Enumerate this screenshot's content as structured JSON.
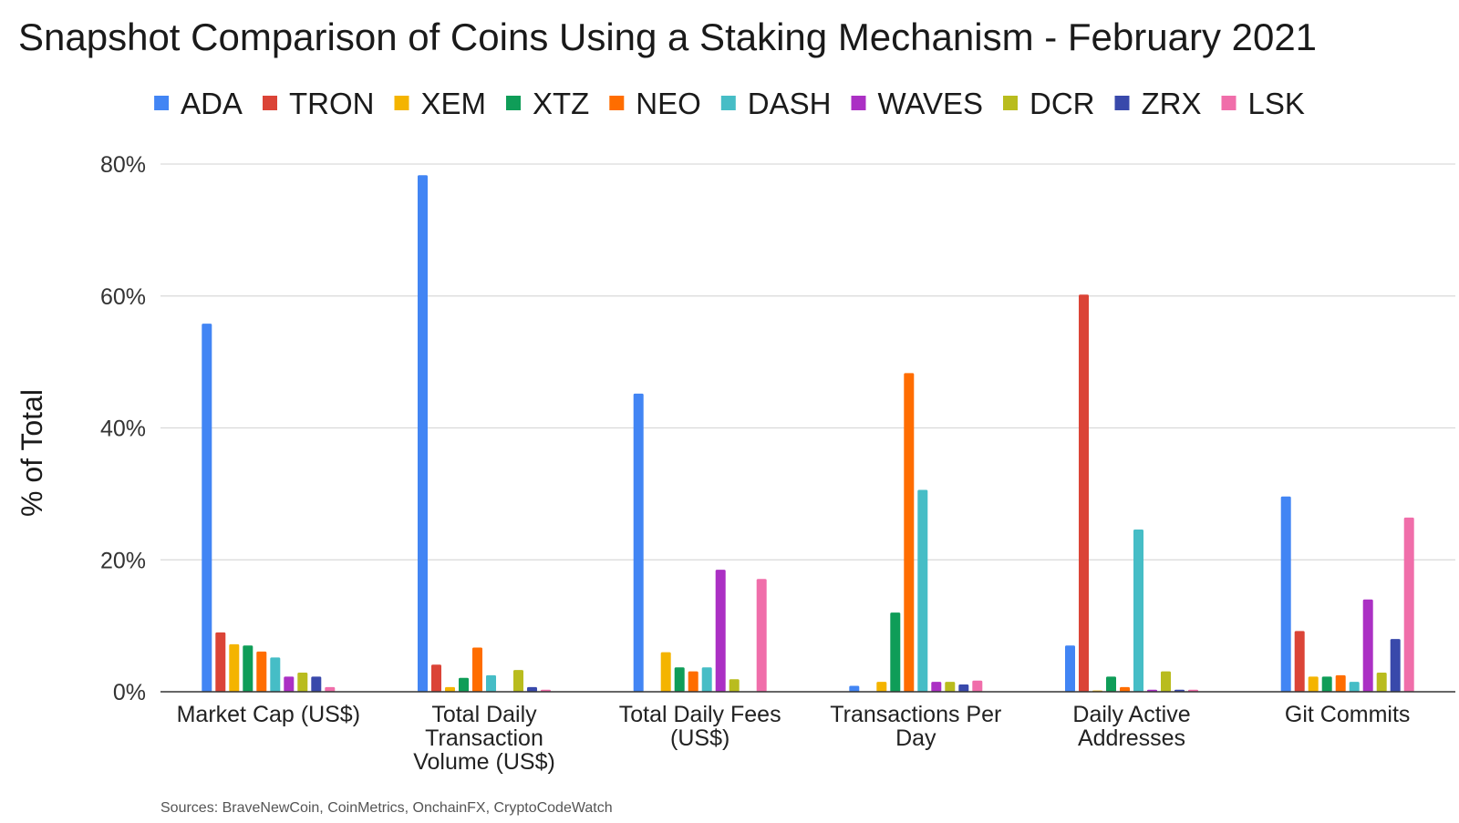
{
  "chart_data": {
    "type": "bar",
    "title": "Snapshot Comparison of Coins Using a Staking Mechanism - February 2021",
    "ylabel": "% of Total",
    "xlabel": "",
    "ylim": [
      0,
      80
    ],
    "yticks": [
      0,
      20,
      40,
      60,
      80
    ],
    "ytick_labels": [
      "0%",
      "20%",
      "40%",
      "60%",
      "80%"
    ],
    "grid": true,
    "legend_position": "top",
    "categories": [
      "Market Cap (US$)",
      "Total Daily Transaction Volume (US$)",
      "Total Daily Fees (US$)",
      "Transactions Per Day",
      "Daily Active Addresses",
      "Git Commits"
    ],
    "category_lines": [
      [
        "Market Cap (US$)"
      ],
      [
        "Total Daily",
        "Transaction",
        "Volume (US$)"
      ],
      [
        "Total Daily Fees",
        "(US$)"
      ],
      [
        "Transactions Per",
        "Day"
      ],
      [
        "Daily Active",
        "Addresses"
      ],
      [
        "Git Commits"
      ]
    ],
    "series": [
      {
        "name": "ADA",
        "color": "#4285F4",
        "values": [
          55.8,
          78.3,
          45.2,
          0.9,
          7.0,
          29.6
        ]
      },
      {
        "name": "TRON",
        "color": "#DB4437",
        "values": [
          9.0,
          4.1,
          0.0,
          0.0,
          60.2,
          9.2
        ]
      },
      {
        "name": "XEM",
        "color": "#F4B400",
        "values": [
          7.2,
          0.7,
          6.0,
          1.5,
          0.2,
          2.3
        ]
      },
      {
        "name": "XTZ",
        "color": "#0F9D58",
        "values": [
          7.0,
          2.1,
          3.7,
          12.0,
          2.3,
          2.3
        ]
      },
      {
        "name": "NEO",
        "color": "#FF6D00",
        "values": [
          6.1,
          6.7,
          3.1,
          48.3,
          0.7,
          2.5
        ]
      },
      {
        "name": "DASH",
        "color": "#46BDC6",
        "values": [
          5.2,
          2.5,
          3.7,
          30.6,
          24.6,
          1.5
        ]
      },
      {
        "name": "WAVES",
        "color": "#AB30C4",
        "values": [
          2.3,
          0.0,
          18.5,
          1.5,
          0.3,
          14.0
        ]
      },
      {
        "name": "DCR",
        "color": "#B9BC1E",
        "values": [
          2.9,
          3.3,
          1.9,
          1.5,
          3.1,
          2.9
        ]
      },
      {
        "name": "ZRX",
        "color": "#3949AB",
        "values": [
          2.3,
          0.7,
          0.0,
          1.1,
          0.3,
          8.0
        ]
      },
      {
        "name": "LSK",
        "color": "#F06EAA",
        "values": [
          0.7,
          0.3,
          17.1,
          1.7,
          0.3,
          26.4
        ]
      }
    ]
  },
  "source_note": "Sources: BraveNewCoin, CoinMetrics, OnchainFX, CryptoCodeWatch"
}
